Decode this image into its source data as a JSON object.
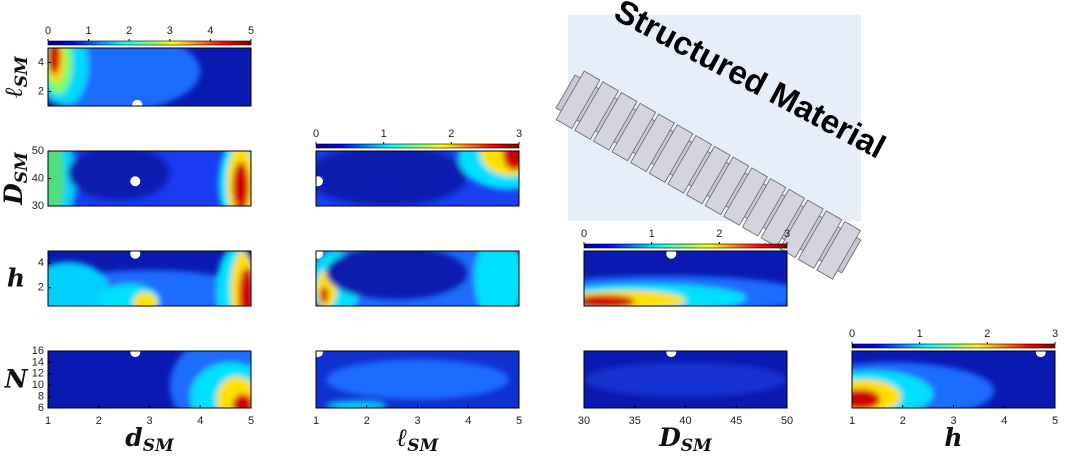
{
  "chart_data": [
    {
      "type": "contour",
      "xlim": [
        1,
        5
      ],
      "ylim": [
        1,
        5
      ],
      "yticks": [
        2,
        4
      ],
      "colorbar": {
        "lim": [
          0,
          5
        ],
        "ticks": [
          0,
          1,
          2,
          3,
          4,
          5
        ]
      }
    },
    {
      "type": "contour",
      "xlim": [
        1,
        5
      ],
      "ylim": [
        30,
        50
      ],
      "yticks": [
        30,
        40,
        50
      ]
    },
    {
      "type": "contour",
      "xlim": [
        1,
        5
      ],
      "ylim": [
        30,
        50
      ],
      "colorbar": {
        "lim": [
          0,
          3
        ],
        "ticks": [
          0,
          1,
          2,
          3
        ]
      }
    },
    {
      "type": "contour",
      "xlim": [
        1,
        5
      ],
      "ylim": [
        0.5,
        5
      ],
      "yticks": [
        2,
        4
      ]
    },
    {
      "type": "contour",
      "xlim": [
        1,
        5
      ],
      "ylim": [
        0.5,
        5
      ]
    },
    {
      "type": "contour",
      "xlim": [
        30,
        50
      ],
      "ylim": [
        0.5,
        5
      ],
      "colorbar": {
        "lim": [
          0,
          3
        ],
        "ticks": [
          0,
          1,
          2,
          3
        ]
      }
    },
    {
      "type": "contour",
      "xlim": [
        1,
        5
      ],
      "ylim": [
        6,
        16
      ],
      "yticks": [
        6,
        8,
        10,
        12,
        14,
        16
      ],
      "xticks": [
        1,
        2,
        3,
        4,
        5
      ]
    },
    {
      "type": "contour",
      "xlim": [
        1,
        5
      ],
      "ylim": [
        6,
        16
      ],
      "xticks": [
        1,
        2,
        3,
        4,
        5
      ]
    },
    {
      "type": "contour",
      "xlim": [
        30,
        50
      ],
      "ylim": [
        6,
        16
      ],
      "xticks": [
        30,
        35,
        40,
        45,
        50
      ]
    },
    {
      "type": "contour",
      "xlim": [
        1,
        5
      ],
      "ylim": [
        6,
        16
      ],
      "xticks": [
        1,
        2,
        3,
        4,
        5
      ],
      "colorbar": {
        "lim": [
          0,
          3
        ],
        "ticks": [
          0,
          1,
          2,
          3
        ]
      }
    }
  ],
  "row_labels": [
    {
      "symbol": "ℓ",
      "sub": "SM"
    },
    {
      "symbol": "D",
      "sub": "SM"
    },
    {
      "symbol": "h"
    },
    {
      "symbol": "N"
    }
  ],
  "column_labels": [
    {
      "symbol": "d",
      "sub": "SM"
    },
    {
      "symbol": "ℓ",
      "sub": "SM"
    },
    {
      "symbol": "D",
      "sub": "SM"
    },
    {
      "symbol": "h"
    }
  ],
  "inset": {
    "text": "Structured Material"
  }
}
